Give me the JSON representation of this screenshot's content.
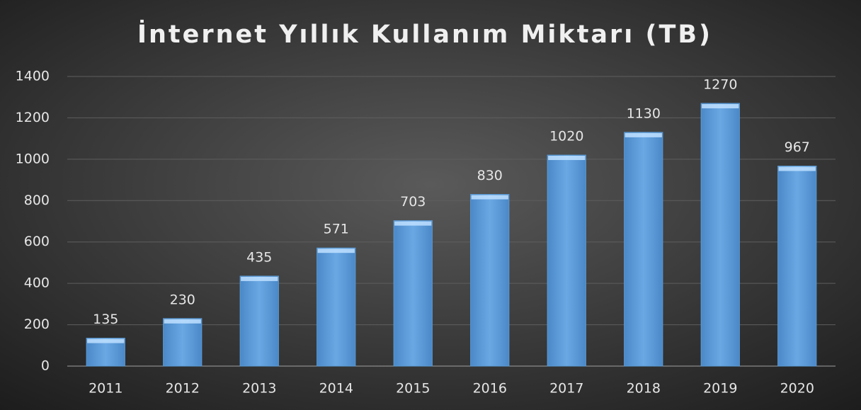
{
  "chart_data": {
    "type": "bar",
    "title": "İnternet Yıllık Kullanım Miktarı (TB)",
    "categories": [
      "2011",
      "2012",
      "2013",
      "2014",
      "2015",
      "2016",
      "2017",
      "2018",
      "2019",
      "2020"
    ],
    "values": [
      135,
      230,
      435,
      571,
      703,
      830,
      1020,
      1130,
      1270,
      967
    ],
    "color": "#5b9bd5",
    "ylim": [
      0,
      1400
    ],
    "yticks": [
      0,
      200,
      400,
      600,
      800,
      1000,
      1200,
      1400
    ],
    "grid": true
  }
}
